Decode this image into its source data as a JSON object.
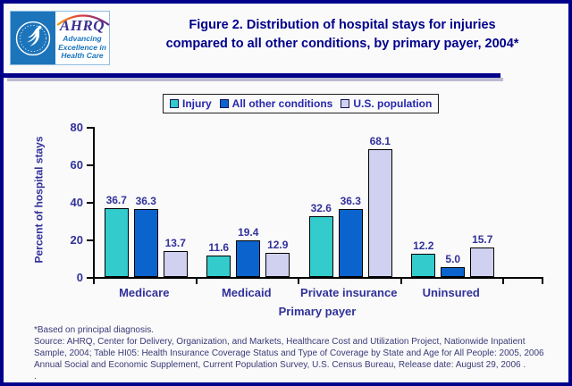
{
  "header": {
    "logo": {
      "acronym": "AHRQ",
      "tagline_lines": [
        "Advancing",
        "Excellence in",
        "Health Care"
      ]
    },
    "title_line1": "Figure 2. Distribution of hospital stays for injuries",
    "title_line2": "compared to all other conditions, by primary payer, 2004*"
  },
  "chart_data": {
    "type": "bar",
    "title": "Figure 2. Distribution of hospital stays for injuries compared to all other conditions, by primary payer, 2004*",
    "categories": [
      "Medicare",
      "Medicaid",
      "Private insurance",
      "Uninsured"
    ],
    "series": [
      {
        "name": "Injury",
        "color": "#33CBCB",
        "values": [
          36.7,
          11.6,
          32.6,
          12.2
        ]
      },
      {
        "name": "All other conditions",
        "color": "#0B63CE",
        "values": [
          36.3,
          19.4,
          36.3,
          5.0
        ]
      },
      {
        "name": "U.S. population",
        "color": "#D0D0F0",
        "values": [
          13.7,
          12.9,
          68.1,
          15.7
        ]
      }
    ],
    "xlabel": "Primary payer",
    "ylabel": "Percent of hospital stays",
    "ylim": [
      0,
      80
    ],
    "yticks": [
      0,
      20,
      40,
      60,
      80
    ],
    "grid": false,
    "legend_position": "top",
    "data_labels": true
  },
  "footnotes": {
    "lines": [
      "*Based on principal diagnosis.",
      "Source: AHRQ, Center for Delivery, Organization, and Markets, Healthcare Cost and Utilization Project, Nationwide Inpatient",
      "Sample, 2004; Table HI05: Health Insurance Coverage Status and Type of Coverage by State and Age for All People: 2005, 2006",
      "Annual Social and Economic Supplement, Current Population Survey, U.S. Census Bureau, Release date: August 29, 2006 .",
      "."
    ]
  },
  "colors": {
    "accent_navy": "#00008B",
    "chart_text": "#31319B",
    "legend_text": "#2626AE",
    "footnote_text": "#3A3A78",
    "hhs_blue": "#1C74BB",
    "ahrq_purple": "#3B3191"
  }
}
